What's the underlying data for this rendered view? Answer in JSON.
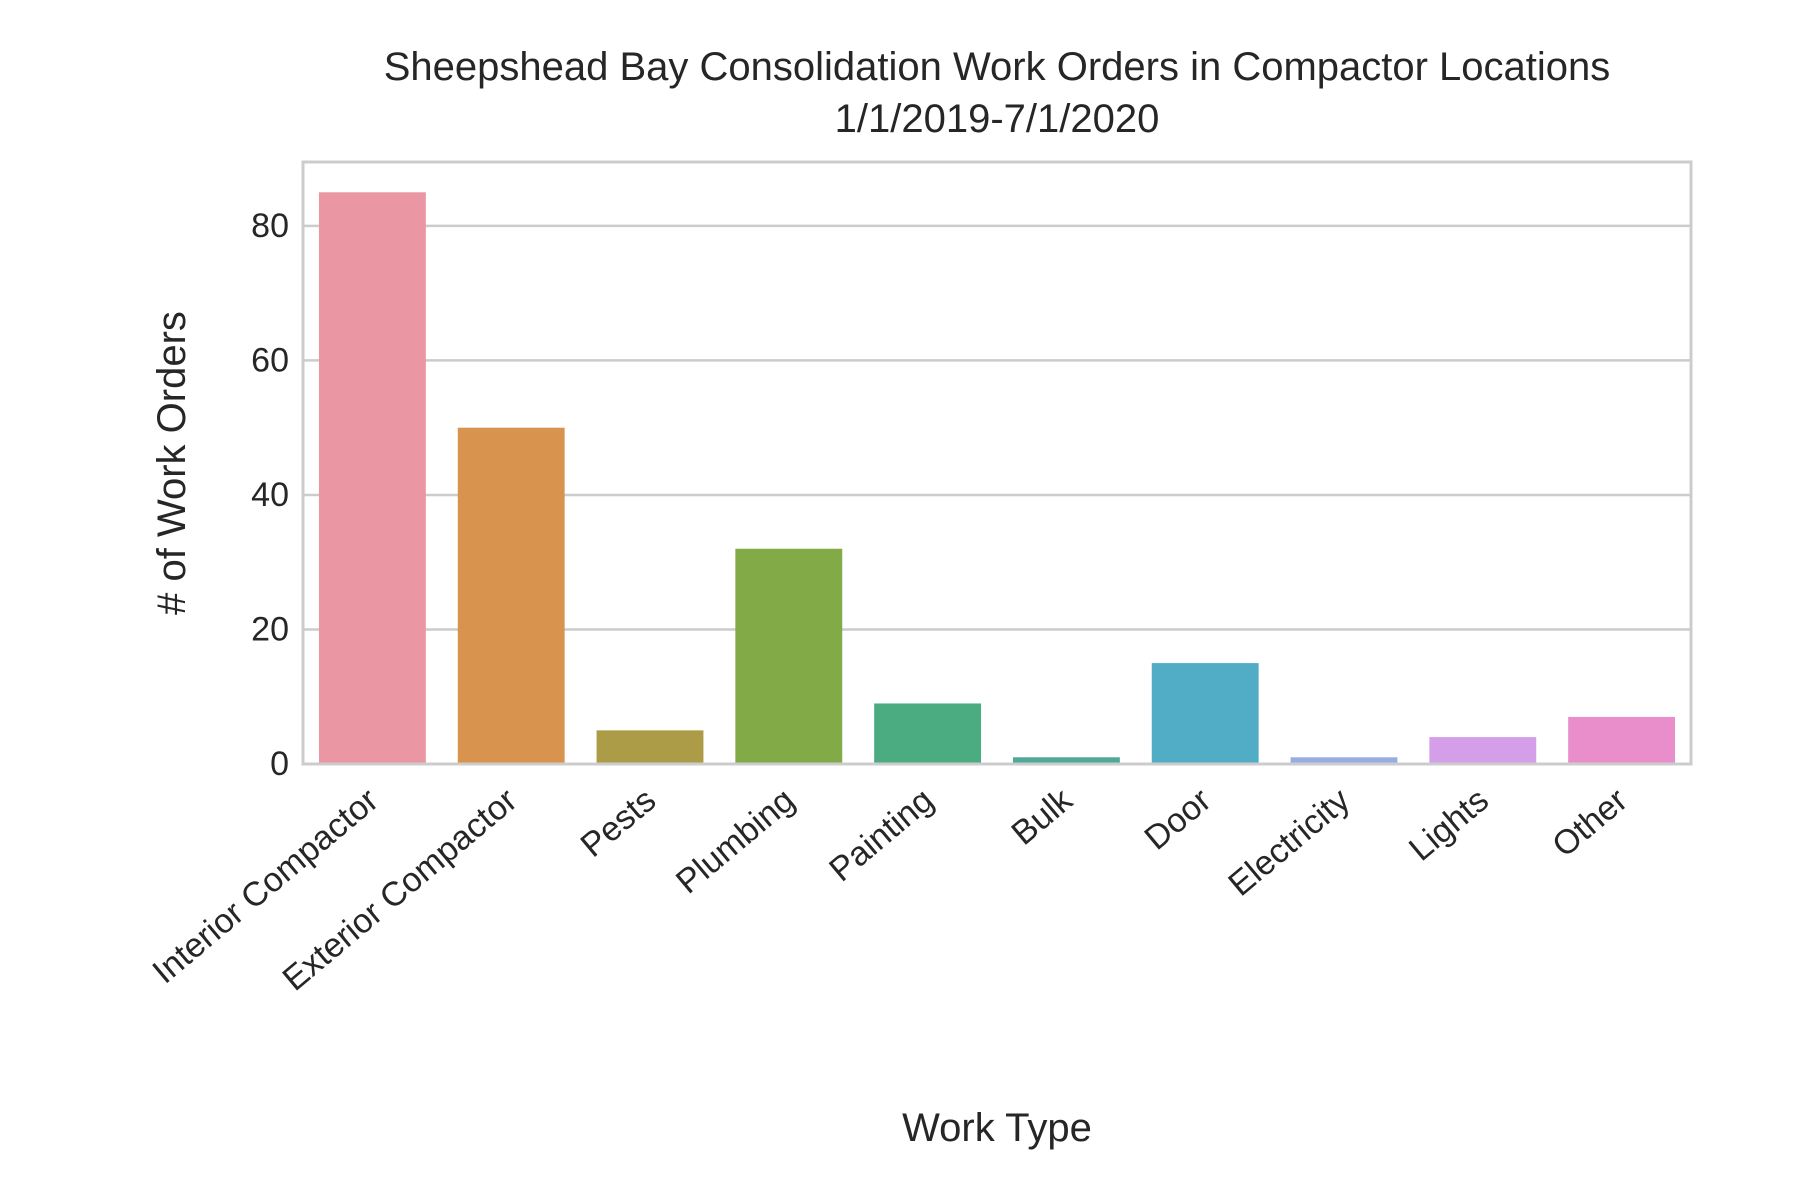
{
  "chart_data": {
    "type": "bar",
    "title": "Sheepshead Bay Consolidation Work Orders in Compactor Locations",
    "subtitle": "1/1/2019-7/1/2020",
    "xlabel": "Work Type",
    "ylabel": "# of Work Orders",
    "categories": [
      "Interior Compactor",
      "Exterior Compactor",
      "Pests",
      "Plumbing",
      "Painting",
      "Bulk",
      "Door",
      "Electricity",
      "Lights",
      "Other"
    ],
    "values": [
      85,
      50,
      5,
      32,
      9,
      1,
      15,
      1,
      4,
      7
    ],
    "colors": [
      "#ea96a3",
      "#d8944e",
      "#ad9c47",
      "#82aa47",
      "#4aac80",
      "#4ea996",
      "#51acc5",
      "#98ade4",
      "#d49ee8",
      "#e98ecb"
    ],
    "ylim": [
      0,
      89.5
    ],
    "yticks": [
      0,
      20,
      40,
      60,
      80
    ],
    "grid": true,
    "legend": "none"
  }
}
